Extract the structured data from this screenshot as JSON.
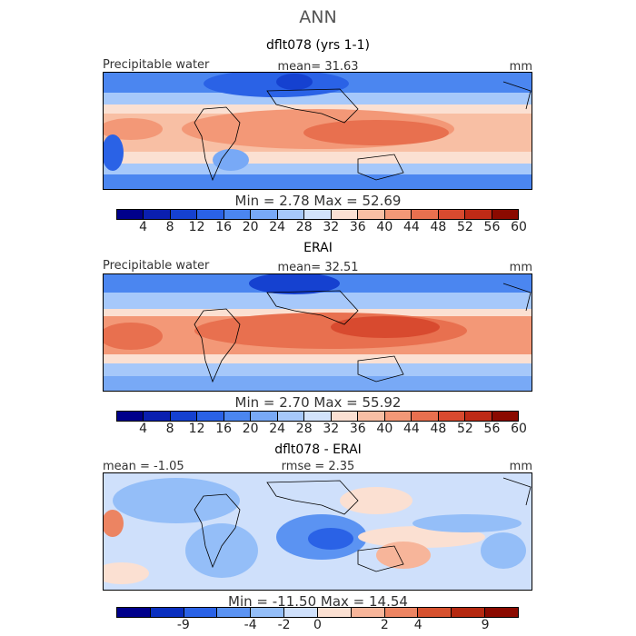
{
  "figure_title": "ANN",
  "panels": [
    {
      "title": "dflt078 (yrs 1-1)",
      "left_label": "Precipitable water",
      "center_label": "mean=   31.63",
      "units": "mm",
      "minmax": "Min =    2.78  Max =   52.69",
      "colorbar_ticks": [
        "4",
        "8",
        "12",
        "16",
        "20",
        "24",
        "28",
        "32",
        "36",
        "40",
        "44",
        "48",
        "52",
        "56",
        "60"
      ]
    },
    {
      "title": "ERAI",
      "left_label": "Precipitable water",
      "center_label": "mean=   32.51",
      "units": "mm",
      "minmax": "Min =    2.70  Max =   55.92",
      "colorbar_ticks": [
        "4",
        "8",
        "12",
        "16",
        "20",
        "24",
        "28",
        "32",
        "36",
        "40",
        "44",
        "48",
        "52",
        "56",
        "60"
      ]
    },
    {
      "title": "dflt078 - ERAI",
      "left_label": "mean =   -1.05",
      "center_label": "rmse =    2.35",
      "units": "mm",
      "minmax": "Min = -11.50  Max =   14.54",
      "colorbar_ticks": [
        "-9",
        "-4",
        "-2",
        "0",
        "2",
        "4",
        "9"
      ]
    }
  ],
  "colors": {
    "abs_scale": [
      "#00008b",
      "#0a1fb0",
      "#1541d0",
      "#2a62e6",
      "#4b86f0",
      "#78a9f6",
      "#a6c8fa",
      "#d2e3fb",
      "#fbe0d2",
      "#f8bfa4",
      "#f39877",
      "#e8704f",
      "#d84a2f",
      "#be2a16",
      "#8b0a00"
    ],
    "diff_scale": [
      "#00008b",
      "#0a2fbf",
      "#2a62e6",
      "#5b93f2",
      "#94bef8",
      "#cfe0fb",
      "#fbe0d2",
      "#f7b59a",
      "#ec8462",
      "#d6512f",
      "#b52810",
      "#8b0a00"
    ]
  }
}
